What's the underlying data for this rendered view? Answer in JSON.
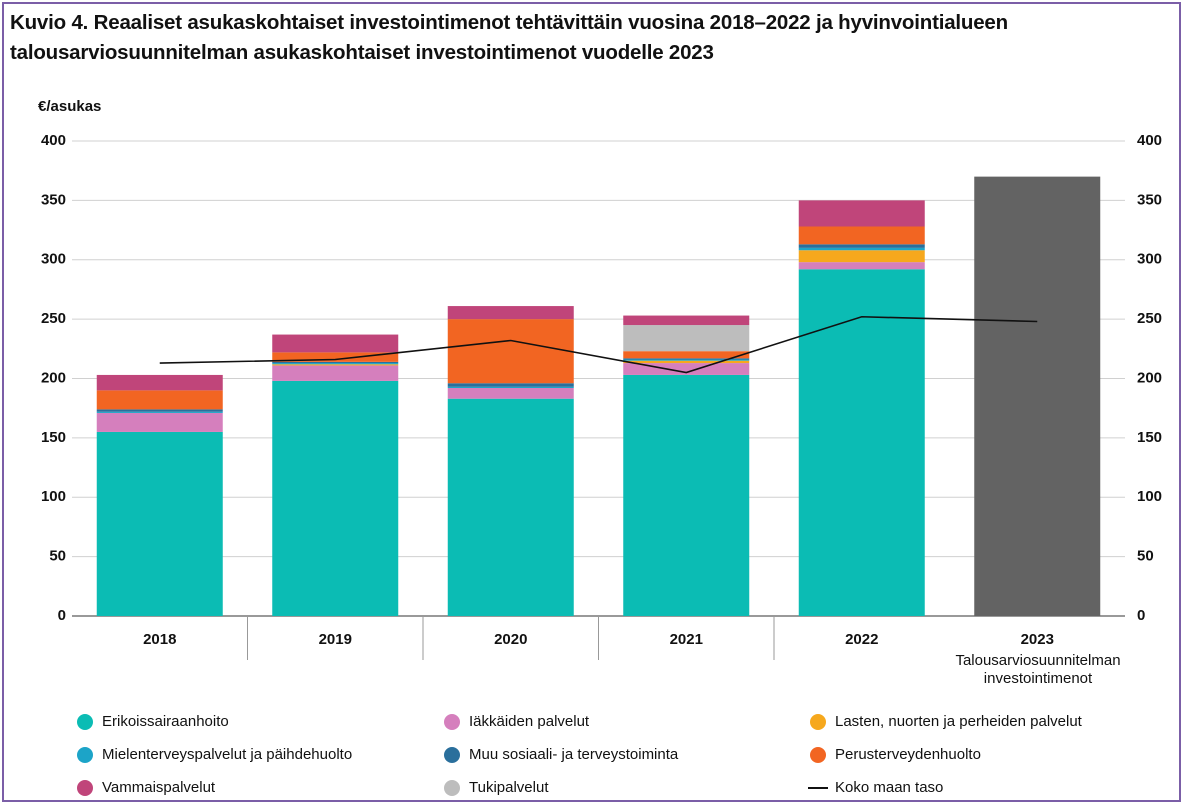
{
  "chart_data": {
    "type": "bar",
    "stacked": true,
    "title": "Kuvio 4. Reaaliset asukaskohtaiset investointimenot tehtävittäin vuosina 2018–2022 ja hyvinvointialueen talousarviosuunnitelman asukaskohtaiset investointimenot vuodelle 2023",
    "y_label": "€/asukas",
    "categories": [
      "2018",
      "2019",
      "2020",
      "2021",
      "2022",
      "2023"
    ],
    "category_note": "Talousarviosuunnitelman investointimenot",
    "ylim": [
      0,
      400
    ],
    "yticks": [
      0,
      50,
      100,
      150,
      200,
      250,
      300,
      350,
      400
    ],
    "y2lim": [
      0,
      400
    ],
    "y2ticks": [
      0,
      50,
      100,
      150,
      200,
      250,
      300,
      350,
      400
    ],
    "grid": true,
    "legend": "bottom",
    "series": [
      {
        "name": "Erikoissairaanhoito",
        "color": "#0bbcb4",
        "values": [
          155,
          198,
          183,
          203,
          292,
          null
        ]
      },
      {
        "name": "Iäkkäiden palvelut",
        "color": "#d57fbd",
        "values": [
          16,
          13,
          9,
          10,
          6,
          null
        ]
      },
      {
        "name": "Lasten, nuorten ja perheiden palvelut",
        "color": "#f6a81d",
        "values": [
          0,
          1,
          0,
          2,
          10,
          null
        ]
      },
      {
        "name": "Mielenterveyspalvelut ja päihdehuolto",
        "color": "#1ca4c8",
        "values": [
          1,
          1,
          1,
          1,
          2,
          null
        ]
      },
      {
        "name": "Muu sosiaali- ja terveystoiminta",
        "color": "#2a6f9c",
        "values": [
          2,
          1,
          3,
          1,
          3,
          null
        ]
      },
      {
        "name": "Perusterveydenhuolto",
        "color": "#f26522",
        "values": [
          16,
          8,
          54,
          6,
          15,
          null
        ]
      },
      {
        "name": "Tukipalvelut",
        "color": "#bdbdbd",
        "values": [
          0,
          0,
          0,
          22,
          0,
          null
        ]
      },
      {
        "name": "Vammaispalvelut",
        "color": "#c0457a",
        "values": [
          13,
          15,
          11,
          8,
          22,
          null
        ]
      }
    ],
    "budget": {
      "color": "#636363",
      "values": [
        null,
        null,
        null,
        null,
        null,
        370
      ]
    },
    "line": {
      "name": "Koko maan taso",
      "color": "#111111",
      "values": [
        213,
        216,
        232,
        205,
        252,
        248
      ]
    }
  }
}
